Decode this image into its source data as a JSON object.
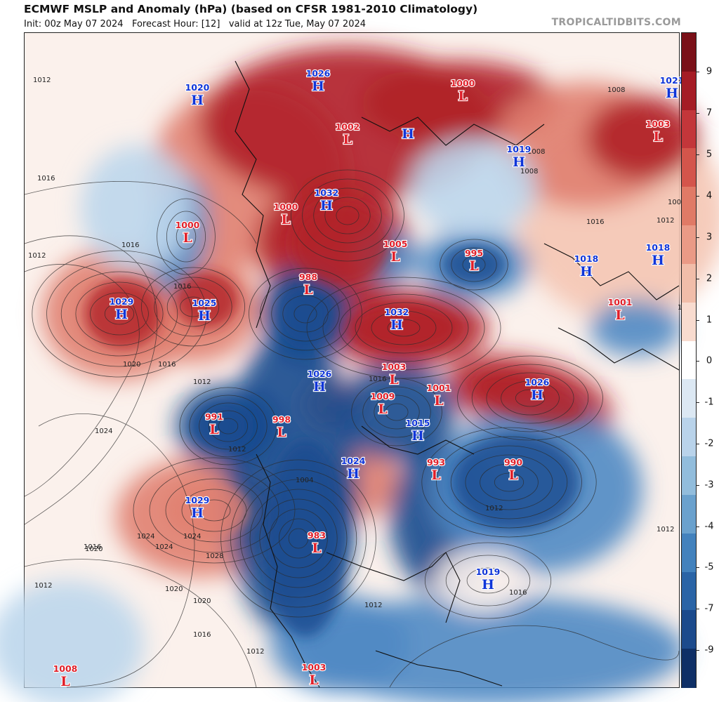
{
  "header": {
    "title": "ECMWF MSLP and Anomaly (hPa) (based on CFSR 1981-2010 Climatology)",
    "subtitle_init": "Init: 00z May 07 2024",
    "subtitle_hour": "Forecast Hour: [12]",
    "subtitle_valid": "valid at 12z Tue, May 07 2024",
    "brand": "TROPICALTIDBITS.COM"
  },
  "colorbar": {
    "ticks": [
      "9",
      "7",
      "5",
      "4",
      "3",
      "2",
      "1",
      "0",
      "-1",
      "-2",
      "-3",
      "-4",
      "-5",
      "-7",
      "-9"
    ],
    "colors": [
      "#7a1018",
      "#a51c25",
      "#c3363a",
      "#d4554b",
      "#e07a66",
      "#ea9a86",
      "#f1bda9",
      "#f8dbcf",
      "#ffffff",
      "#dce8f3",
      "#b9d3ea",
      "#92bddc",
      "#6aa1cd",
      "#4382bd",
      "#2a64a6",
      "#1b4a8c",
      "#0e2f66"
    ]
  },
  "map": {
    "colors": {
      "ocean_neutral": "#fbf1ec",
      "strong_pos": "#b02028",
      "mod_pos": "#e08070",
      "weak_pos": "#f4c5b4",
      "strong_neg": "#174a8e",
      "mod_neg": "#4f8ac4",
      "weak_neg": "#bcd6ec"
    },
    "centers": [
      {
        "type": "H",
        "value": "1020"
      },
      {
        "type": "H",
        "value": "1026"
      },
      {
        "type": "H",
        "value": ""
      },
      {
        "type": "L",
        "value": "1000"
      },
      {
        "type": "L",
        "value": "1002"
      },
      {
        "type": "H",
        "value": "1019"
      },
      {
        "type": "H",
        "value": "1021"
      },
      {
        "type": "L",
        "value": "1003"
      },
      {
        "type": "H",
        "value": "1032"
      },
      {
        "type": "L",
        "value": "1000"
      },
      {
        "type": "L",
        "value": "1000"
      },
      {
        "type": "L",
        "value": "1005"
      },
      {
        "type": "L",
        "value": "995"
      },
      {
        "type": "H",
        "value": "1018"
      },
      {
        "type": "H",
        "value": "1018"
      },
      {
        "type": "L",
        "value": "1001"
      },
      {
        "type": "H",
        "value": "1029"
      },
      {
        "type": "H",
        "value": "1025"
      },
      {
        "type": "L",
        "value": "988"
      },
      {
        "type": "H",
        "value": "1032"
      },
      {
        "type": "H",
        "value": "1026"
      },
      {
        "type": "L",
        "value": "1003"
      },
      {
        "type": "L",
        "value": "1001"
      },
      {
        "type": "L",
        "value": "1009"
      },
      {
        "type": "H",
        "value": "1026"
      },
      {
        "type": "L",
        "value": "991"
      },
      {
        "type": "L",
        "value": "998"
      },
      {
        "type": "H",
        "value": "1015"
      },
      {
        "type": "H",
        "value": "1024"
      },
      {
        "type": "L",
        "value": "993"
      },
      {
        "type": "L",
        "value": "990"
      },
      {
        "type": "H",
        "value": "1029"
      },
      {
        "type": "L",
        "value": "983"
      },
      {
        "type": "H",
        "value": "1019"
      },
      {
        "type": "L",
        "value": "1008"
      },
      {
        "type": "L",
        "value": "1003"
      }
    ],
    "isobar_labels": [
      "1012",
      "1016",
      "1012",
      "1016",
      "1020",
      "1024",
      "1016",
      "1020",
      "1024",
      "1016",
      "1012",
      "1020",
      "1016",
      "1012",
      "1024",
      "1028",
      "1016",
      "1020",
      "1024",
      "1012",
      "1016",
      "1008",
      "1008",
      "1008",
      "1008",
      "1012",
      "1016",
      "1012",
      "1012",
      "1012",
      "1016",
      "1012",
      "1008",
      "1004"
    ]
  }
}
